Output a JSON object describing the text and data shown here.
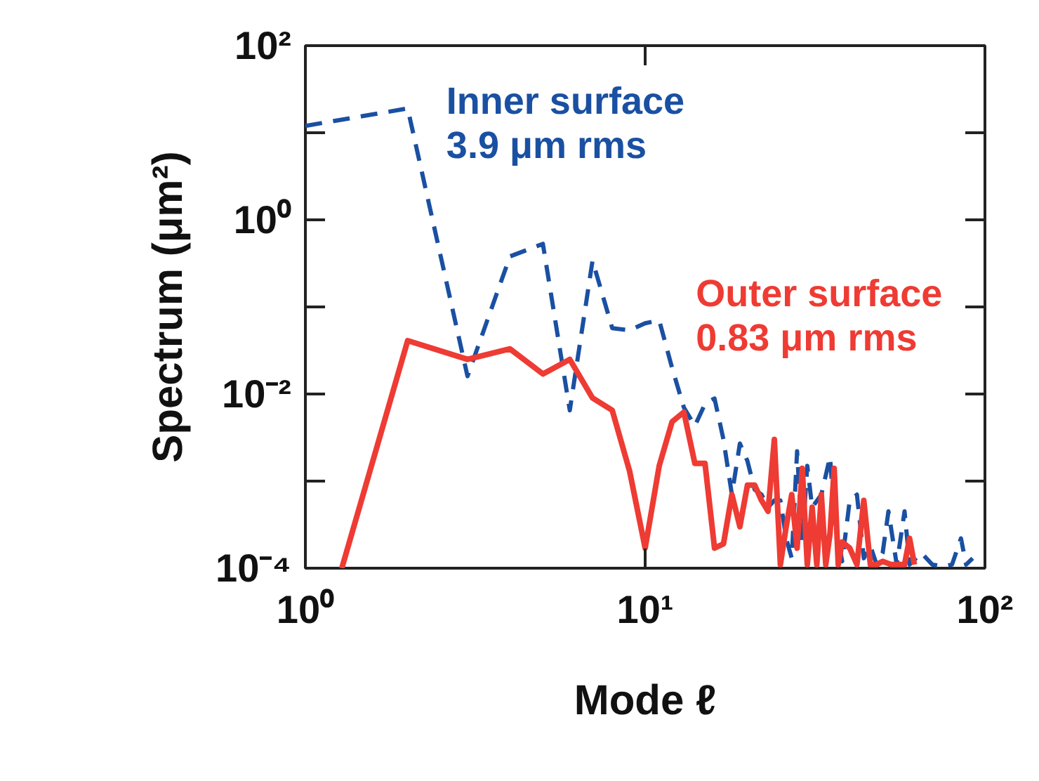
{
  "chart_data": {
    "type": "line",
    "xlabel": "Mode ℓ",
    "ylabel": "Spectrum (μm²)",
    "log": "xy",
    "xlim": [
      1,
      100
    ],
    "ylim": [
      0.0001,
      100
    ],
    "xticks": [
      {
        "value": 1,
        "label": "10⁰"
      },
      {
        "value": 10,
        "label": "10¹"
      },
      {
        "value": 100,
        "label": "10²"
      }
    ],
    "yticks": [
      {
        "value": 0.0001,
        "label": "10⁻⁴"
      },
      {
        "value": 0.001,
        "label": null
      },
      {
        "value": 0.01,
        "label": "10⁻²"
      },
      {
        "value": 0.1,
        "label": null
      },
      {
        "value": 1,
        "label": "10⁰"
      },
      {
        "value": 10,
        "label": null
      },
      {
        "value": 100,
        "label": "10²"
      }
    ],
    "series": [
      {
        "name": "Inner surface\n3.9 μm rms",
        "color": "#1a50a2",
        "line_style": "dashed",
        "x": [
          1,
          2,
          3,
          4,
          5,
          6,
          7,
          8,
          9,
          10,
          11,
          12,
          13,
          14,
          15,
          16,
          17,
          18,
          19,
          20,
          21,
          22,
          23,
          24,
          25,
          26,
          27,
          28,
          29,
          30,
          31,
          33,
          35,
          36,
          38,
          40,
          42,
          44,
          46,
          48,
          50,
          52,
          55,
          58,
          60,
          65,
          70,
          75,
          80,
          85,
          88,
          92
        ],
        "values": [
          12,
          19,
          0.016,
          0.38,
          0.53,
          0.0065,
          0.34,
          0.057,
          0.054,
          0.065,
          0.07,
          0.02,
          0.007,
          0.0043,
          0.0077,
          0.0089,
          0.003,
          0.0007,
          0.0027,
          0.0017,
          0.0008,
          0.0007,
          0.0005,
          0.0006,
          0.0006,
          0.00022,
          0.00013,
          0.0022,
          0.0002,
          0.0015,
          0.0005,
          0.0007,
          0.0019,
          0.0004,
          0.00012,
          0.0006,
          0.0007,
          0.00013,
          0.00018,
          0.00011,
          0.00015,
          0.00045,
          0.00011,
          0.00045,
          0.00011,
          0.00015,
          0.00011,
          0.000105,
          0.00011,
          0.00022,
          0.00011,
          0.00013
        ]
      },
      {
        "name": "Outer surface\n0.83 μm rms",
        "color": "#ee3b33",
        "line_style": "solid",
        "x": [
          1.28,
          2,
          3,
          4,
          5,
          6,
          7,
          8,
          9,
          10,
          11,
          12,
          13,
          14,
          15,
          16,
          17,
          18,
          19,
          20,
          21,
          22,
          23,
          24,
          25,
          26,
          27,
          28,
          29,
          30,
          31,
          32,
          33,
          34,
          35,
          36,
          37,
          38,
          40,
          42,
          44,
          46,
          48,
          50,
          53,
          56,
          58,
          60,
          62
        ],
        "values": [
          0.0001,
          0.041,
          0.025,
          0.033,
          0.017,
          0.025,
          0.009,
          0.0065,
          0.0013,
          0.00017,
          0.0015,
          0.0048,
          0.0062,
          0.0016,
          0.0016,
          0.00017,
          0.00019,
          0.0007,
          0.0003,
          0.0009,
          0.0009,
          0.0006,
          0.00045,
          0.003,
          0.00011,
          0.0003,
          0.0007,
          0.00017,
          0.0014,
          0.00011,
          0.0005,
          0.00011,
          0.0007,
          0.00011,
          0.00025,
          0.0014,
          0.00011,
          0.0002,
          0.00017,
          0.00011,
          0.0006,
          0.00011,
          0.00011,
          0.00012,
          0.00011,
          0.00011,
          0.00011,
          0.00022,
          0.00011
        ]
      }
    ]
  }
}
